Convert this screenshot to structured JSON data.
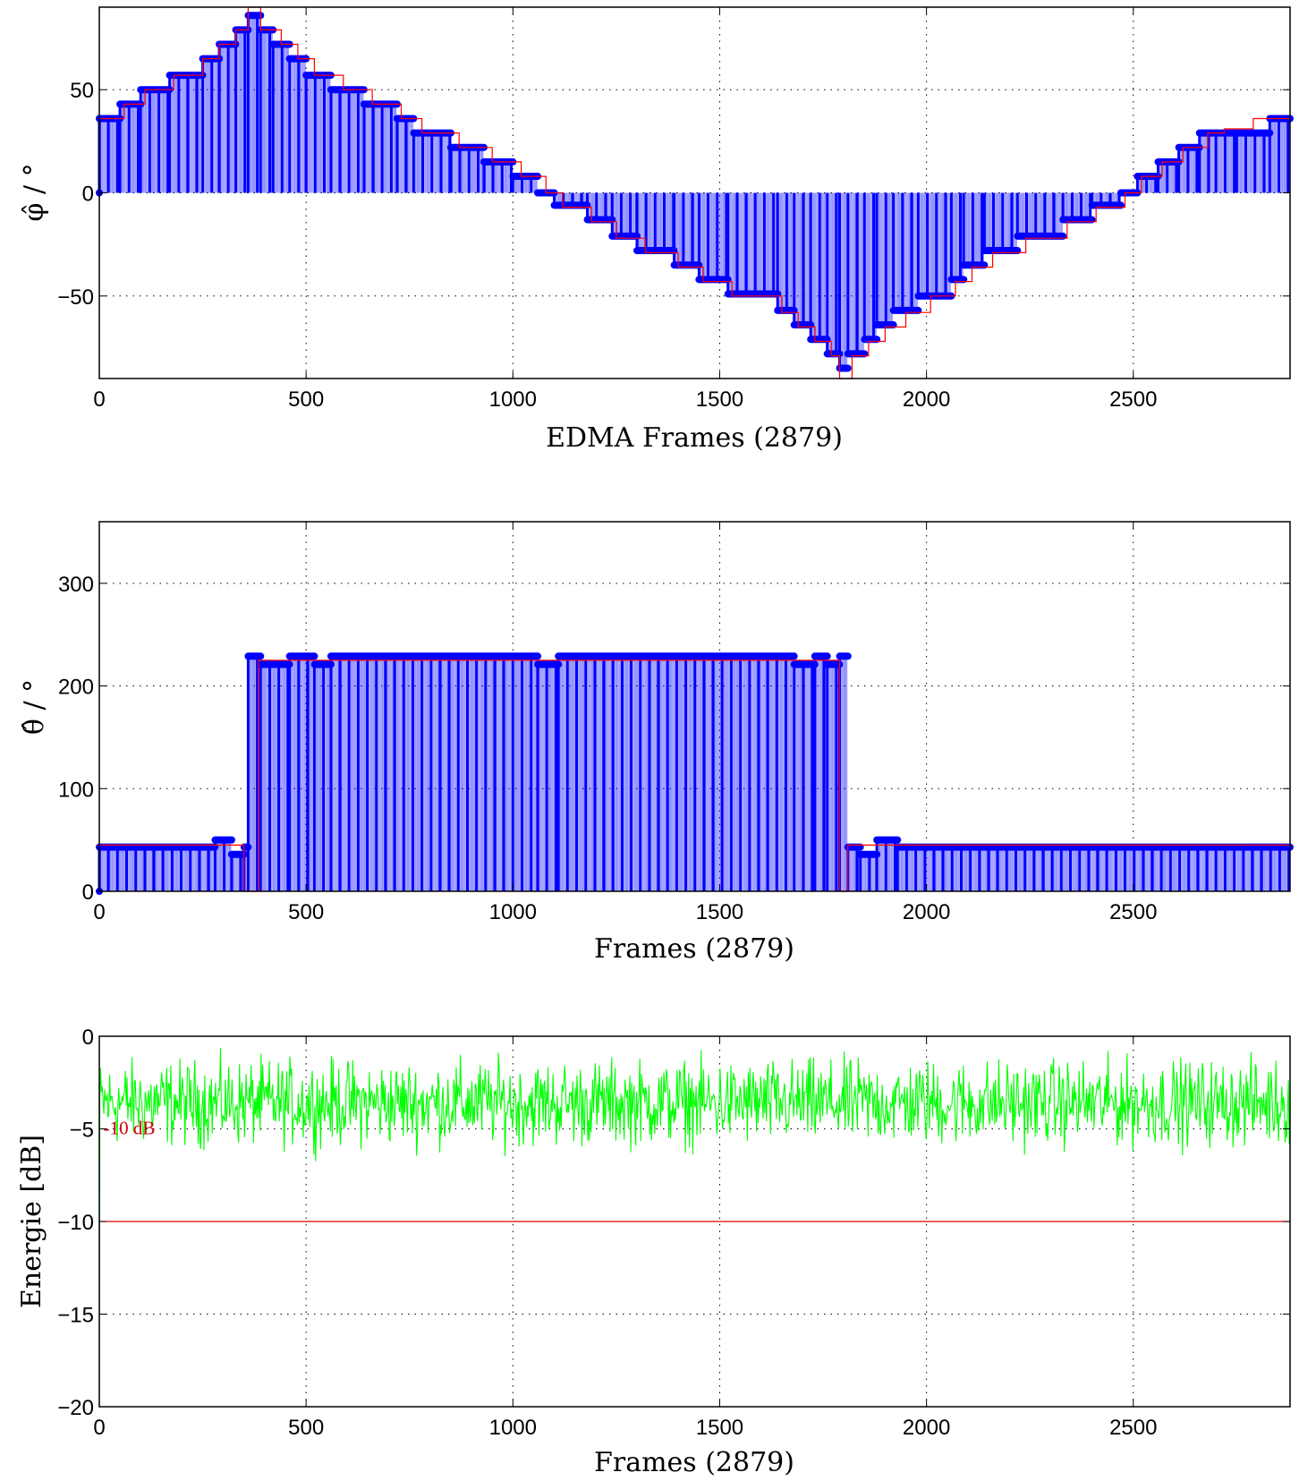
{
  "colors": {
    "stem": "#0000ff",
    "reference": "#ff0000",
    "energy": "#00ff00",
    "threshold": "#e00000",
    "grid": "#000000"
  },
  "chart_data": [
    {
      "type": "stem",
      "xlabel": "EDMA Frames (2879)",
      "ylabel": "φ̂ / °",
      "xlim": [
        0,
        2879
      ],
      "ylim": [
        -90,
        90
      ],
      "grid": true,
      "x_ticks": [
        0,
        500,
        1000,
        1500,
        2000,
        2500
      ],
      "y_ticks": [
        -50,
        0,
        50
      ],
      "series": [
        {
          "style": "stem",
          "steps": [
            {
              "x0": 0,
              "x1": 50,
              "y": 36
            },
            {
              "x0": 50,
              "x1": 100,
              "y": 43
            },
            {
              "x0": 100,
              "x1": 170,
              "y": 50
            },
            {
              "x0": 170,
              "x1": 250,
              "y": 57
            },
            {
              "x0": 250,
              "x1": 290,
              "y": 65
            },
            {
              "x0": 290,
              "x1": 330,
              "y": 72
            },
            {
              "x0": 330,
              "x1": 360,
              "y": 79
            },
            {
              "x0": 360,
              "x1": 390,
              "y": 86
            },
            {
              "x0": 390,
              "x1": 420,
              "y": 79
            },
            {
              "x0": 420,
              "x1": 460,
              "y": 72
            },
            {
              "x0": 460,
              "x1": 500,
              "y": 65
            },
            {
              "x0": 500,
              "x1": 560,
              "y": 57
            },
            {
              "x0": 560,
              "x1": 640,
              "y": 50
            },
            {
              "x0": 640,
              "x1": 720,
              "y": 43
            },
            {
              "x0": 720,
              "x1": 760,
              "y": 36
            },
            {
              "x0": 760,
              "x1": 850,
              "y": 29
            },
            {
              "x0": 850,
              "x1": 930,
              "y": 22
            },
            {
              "x0": 930,
              "x1": 1000,
              "y": 15
            },
            {
              "x0": 1000,
              "x1": 1060,
              "y": 8
            },
            {
              "x0": 1060,
              "x1": 1100,
              "y": 0
            },
            {
              "x0": 1100,
              "x1": 1180,
              "y": -6
            },
            {
              "x0": 1180,
              "x1": 1240,
              "y": -13
            },
            {
              "x0": 1240,
              "x1": 1300,
              "y": -21
            },
            {
              "x0": 1300,
              "x1": 1390,
              "y": -28
            },
            {
              "x0": 1390,
              "x1": 1450,
              "y": -35
            },
            {
              "x0": 1450,
              "x1": 1520,
              "y": -42
            },
            {
              "x0": 1520,
              "x1": 1640,
              "y": -49
            },
            {
              "x0": 1640,
              "x1": 1680,
              "y": -57
            },
            {
              "x0": 1680,
              "x1": 1720,
              "y": -64
            },
            {
              "x0": 1720,
              "x1": 1760,
              "y": -71
            },
            {
              "x0": 1760,
              "x1": 1790,
              "y": -78
            },
            {
              "x0": 1790,
              "x1": 1810,
              "y": -85
            },
            {
              "x0": 1810,
              "x1": 1850,
              "y": -78
            },
            {
              "x0": 1850,
              "x1": 1880,
              "y": -71
            },
            {
              "x0": 1880,
              "x1": 1920,
              "y": -64
            },
            {
              "x0": 1920,
              "x1": 1980,
              "y": -57
            },
            {
              "x0": 1980,
              "x1": 2060,
              "y": -50
            },
            {
              "x0": 2060,
              "x1": 2090,
              "y": -42
            },
            {
              "x0": 2090,
              "x1": 2140,
              "y": -35
            },
            {
              "x0": 2140,
              "x1": 2220,
              "y": -28
            },
            {
              "x0": 2220,
              "x1": 2330,
              "y": -21
            },
            {
              "x0": 2330,
              "x1": 2400,
              "y": -13
            },
            {
              "x0": 2400,
              "x1": 2470,
              "y": -6
            },
            {
              "x0": 2470,
              "x1": 2510,
              "y": 0
            },
            {
              "x0": 2510,
              "x1": 2560,
              "y": 8
            },
            {
              "x0": 2560,
              "x1": 2610,
              "y": 15
            },
            {
              "x0": 2610,
              "x1": 2660,
              "y": 22
            },
            {
              "x0": 2660,
              "x1": 2700,
              "y": 29
            },
            {
              "x0": 2700,
              "x1": 2750,
              "y": 29
            },
            {
              "x0": 2750,
              "x1": 2830,
              "y": 29
            },
            {
              "x0": 2830,
              "x1": 2879,
              "y": 36
            }
          ]
        },
        {
          "style": "step",
          "steps": [
            {
              "x0": 0,
              "x1": 60,
              "y": 36
            },
            {
              "x0": 60,
              "x1": 110,
              "y": 43
            },
            {
              "x0": 110,
              "x1": 180,
              "y": 50
            },
            {
              "x0": 180,
              "x1": 250,
              "y": 57
            },
            {
              "x0": 250,
              "x1": 290,
              "y": 65
            },
            {
              "x0": 290,
              "x1": 330,
              "y": 72
            },
            {
              "x0": 330,
              "x1": 360,
              "y": 79
            },
            {
              "x0": 360,
              "x1": 390,
              "y": 90
            },
            {
              "x0": 390,
              "x1": 440,
              "y": 79
            },
            {
              "x0": 440,
              "x1": 480,
              "y": 72
            },
            {
              "x0": 480,
              "x1": 520,
              "y": 65
            },
            {
              "x0": 520,
              "x1": 590,
              "y": 57
            },
            {
              "x0": 590,
              "x1": 660,
              "y": 50
            },
            {
              "x0": 660,
              "x1": 730,
              "y": 43
            },
            {
              "x0": 730,
              "x1": 780,
              "y": 36
            },
            {
              "x0": 780,
              "x1": 870,
              "y": 29
            },
            {
              "x0": 870,
              "x1": 950,
              "y": 22
            },
            {
              "x0": 950,
              "x1": 1020,
              "y": 15
            },
            {
              "x0": 1020,
              "x1": 1080,
              "y": 8
            },
            {
              "x0": 1080,
              "x1": 1120,
              "y": 0
            },
            {
              "x0": 1120,
              "x1": 1190,
              "y": -7
            },
            {
              "x0": 1190,
              "x1": 1250,
              "y": -14
            },
            {
              "x0": 1250,
              "x1": 1320,
              "y": -22
            },
            {
              "x0": 1320,
              "x1": 1400,
              "y": -29
            },
            {
              "x0": 1400,
              "x1": 1460,
              "y": -36
            },
            {
              "x0": 1460,
              "x1": 1530,
              "y": -43
            },
            {
              "x0": 1530,
              "x1": 1650,
              "y": -50
            },
            {
              "x0": 1650,
              "x1": 1690,
              "y": -58
            },
            {
              "x0": 1690,
              "x1": 1730,
              "y": -65
            },
            {
              "x0": 1730,
              "x1": 1770,
              "y": -72
            },
            {
              "x0": 1770,
              "x1": 1790,
              "y": -79
            },
            {
              "x0": 1790,
              "x1": 1820,
              "y": -90
            },
            {
              "x0": 1820,
              "x1": 1860,
              "y": -79
            },
            {
              "x0": 1860,
              "x1": 1900,
              "y": -72
            },
            {
              "x0": 1900,
              "x1": 1950,
              "y": -65
            },
            {
              "x0": 1950,
              "x1": 2010,
              "y": -58
            },
            {
              "x0": 2010,
              "x1": 2070,
              "y": -50
            },
            {
              "x0": 2070,
              "x1": 2110,
              "y": -43
            },
            {
              "x0": 2110,
              "x1": 2160,
              "y": -36
            },
            {
              "x0": 2160,
              "x1": 2240,
              "y": -29
            },
            {
              "x0": 2240,
              "x1": 2340,
              "y": -22
            },
            {
              "x0": 2340,
              "x1": 2410,
              "y": -14
            },
            {
              "x0": 2410,
              "x1": 2480,
              "y": -7
            },
            {
              "x0": 2480,
              "x1": 2520,
              "y": 0
            },
            {
              "x0": 2520,
              "x1": 2570,
              "y": 8
            },
            {
              "x0": 2570,
              "x1": 2620,
              "y": 15
            },
            {
              "x0": 2620,
              "x1": 2680,
              "y": 22
            },
            {
              "x0": 2680,
              "x1": 2720,
              "y": 29
            },
            {
              "x0": 2720,
              "x1": 2790,
              "y": 31
            },
            {
              "x0": 2790,
              "x1": 2879,
              "y": 36
            }
          ]
        }
      ]
    },
    {
      "type": "stem",
      "xlabel": "Frames (2879)",
      "ylabel": "θ̂ / °",
      "xlim": [
        0,
        2879
      ],
      "ylim": [
        0,
        360
      ],
      "grid": true,
      "x_ticks": [
        0,
        500,
        1000,
        1500,
        2000,
        2500
      ],
      "y_ticks": [
        0,
        100,
        200,
        300
      ],
      "series": [
        {
          "style": "stem",
          "steps": [
            {
              "x0": 0,
              "x1": 280,
              "y": 43
            },
            {
              "x0": 280,
              "x1": 320,
              "y": 50
            },
            {
              "x0": 320,
              "x1": 350,
              "y": 36
            },
            {
              "x0": 350,
              "x1": 360,
              "y": 43
            },
            {
              "x0": 360,
              "x1": 390,
              "y": 229
            },
            {
              "x0": 390,
              "x1": 460,
              "y": 221
            },
            {
              "x0": 460,
              "x1": 520,
              "y": 229
            },
            {
              "x0": 520,
              "x1": 560,
              "y": 221
            },
            {
              "x0": 560,
              "x1": 1060,
              "y": 229
            },
            {
              "x0": 1060,
              "x1": 1110,
              "y": 221
            },
            {
              "x0": 1110,
              "x1": 1680,
              "y": 229
            },
            {
              "x0": 1680,
              "x1": 1730,
              "y": 221
            },
            {
              "x0": 1730,
              "x1": 1760,
              "y": 229
            },
            {
              "x0": 1760,
              "x1": 1790,
              "y": 221
            },
            {
              "x0": 1790,
              "x1": 1810,
              "y": 229
            },
            {
              "x0": 1810,
              "x1": 1840,
              "y": 43
            },
            {
              "x0": 1840,
              "x1": 1880,
              "y": 36
            },
            {
              "x0": 1880,
              "x1": 1930,
              "y": 50
            },
            {
              "x0": 1930,
              "x1": 2879,
              "y": 43
            }
          ]
        },
        {
          "style": "step",
          "steps": [
            {
              "x0": 0,
              "x1": 350,
              "y": 45
            },
            {
              "x0": 350,
              "x1": 385,
              "y": 0
            },
            {
              "x0": 385,
              "x1": 1790,
              "y": 225
            },
            {
              "x0": 1790,
              "x1": 1810,
              "y": 0
            },
            {
              "x0": 1810,
              "x1": 2879,
              "y": 45
            }
          ]
        }
      ]
    },
    {
      "type": "line",
      "xlabel": "Frames (2879)",
      "ylabel": "Energie [dB]",
      "xlim": [
        0,
        2879
      ],
      "ylim": [
        -20,
        0
      ],
      "grid": true,
      "x_ticks": [
        0,
        500,
        1000,
        1500,
        2000,
        2500
      ],
      "y_ticks": [
        -20,
        -15,
        -10,
        -5,
        0
      ],
      "threshold": {
        "y": -10,
        "label": "-10 dB"
      },
      "series": [
        {
          "style": "noise",
          "start": -20,
          "mean": -3.6,
          "spread": 1.3,
          "min": -8.2,
          "max": -0.1
        }
      ]
    }
  ]
}
